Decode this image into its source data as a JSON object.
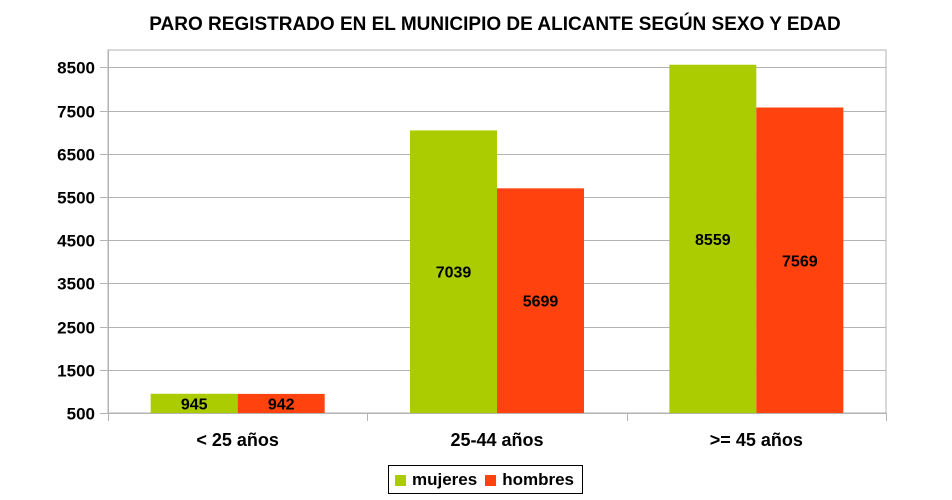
{
  "chart_data": {
    "type": "bar",
    "title": "PARO REGISTRADO EN EL MUNICIPIO DE ALICANTE SEGÚN SEXO Y EDAD",
    "categories": [
      "< 25 años",
      "25-44 años",
      ">= 45 años"
    ],
    "series": [
      {
        "name": "mujeres",
        "color": "#AACC00",
        "values": [
          945,
          7039,
          8559
        ]
      },
      {
        "name": "hombres",
        "color": "#FF420E",
        "values": [
          942,
          5699,
          7569
        ]
      }
    ],
    "ylim": [
      500,
      8900
    ],
    "yticks": [
      "500",
      "1500",
      "2500",
      "3500",
      "4500",
      "5500",
      "6500",
      "7500",
      "8500"
    ],
    "grid": true,
    "legend": "bottom-center"
  }
}
